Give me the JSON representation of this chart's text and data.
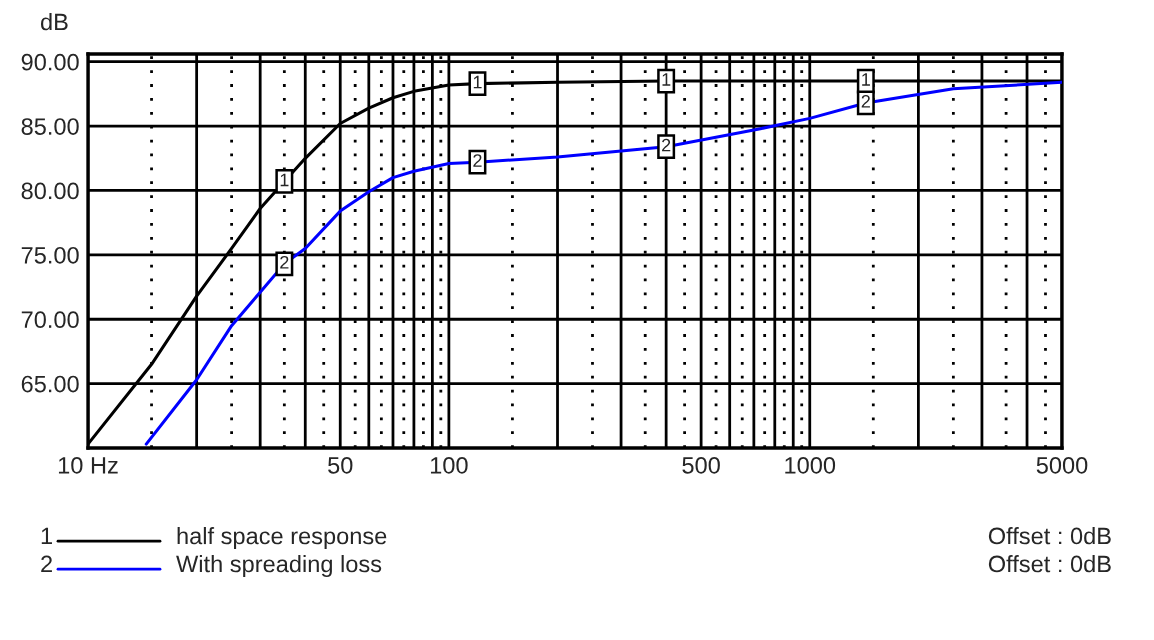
{
  "chart_data": {
    "type": "line",
    "ylabel": "dB",
    "log": "x",
    "grid": true,
    "legend": "bottom",
    "line_style": "solid",
    "marker": "none",
    "xlim": [
      10,
      5000
    ],
    "xticks": [
      {
        "value": 10,
        "label": "10 Hz"
      },
      50,
      100,
      500,
      1000,
      5000
    ],
    "ylim": [
      60,
      90.6
    ],
    "yticks": [
      {
        "value": 65,
        "label": "65.00"
      },
      {
        "value": 70,
        "label": "70.00"
      },
      {
        "value": 75,
        "label": "75.00"
      },
      {
        "value": 80,
        "label": "80.00"
      },
      {
        "value": 85,
        "label": "85.00"
      },
      {
        "value": 90,
        "label": "90.00"
      }
    ],
    "series": [
      {
        "name": "half space response",
        "color": "#000000",
        "x": [
          10,
          15,
          20,
          25,
          30,
          35,
          40,
          50,
          60,
          70,
          80,
          100,
          120,
          200,
          400,
          1000,
          1430,
          5000
        ],
        "values": [
          60.3,
          66.5,
          71.8,
          75.5,
          78.6,
          80.7,
          82.5,
          85.2,
          86.4,
          87.2,
          87.7,
          88.2,
          88.3,
          88.4,
          88.5,
          88.5,
          88.5,
          88.5
        ]
      },
      {
        "name": "With spreading loss",
        "color": "#0000ff",
        "x": [
          14.5,
          20,
          25,
          30,
          35,
          40,
          50,
          60,
          70,
          80,
          100,
          120,
          200,
          400,
          730,
          1000,
          1430,
          2500,
          5000
        ],
        "values": [
          60.3,
          65.3,
          69.5,
          72.1,
          74.3,
          75.5,
          78.4,
          79.9,
          81.0,
          81.5,
          82.1,
          82.2,
          82.6,
          83.4,
          84.8,
          85.6,
          86.8,
          87.9,
          88.4
        ]
      }
    ],
    "annotations": [
      {
        "text": "1",
        "x": 35,
        "y": 80.7
      },
      {
        "text": "1",
        "x": 120,
        "y": 88.3
      },
      {
        "text": "1",
        "x": 400,
        "y": 88.5
      },
      {
        "text": "1",
        "x": 1430,
        "y": 88.5
      },
      {
        "text": "2",
        "x": 35,
        "y": 74.3
      },
      {
        "text": "2",
        "x": 120,
        "y": 82.2
      },
      {
        "text": "2",
        "x": 400,
        "y": 83.4
      },
      {
        "text": "2",
        "x": 1430,
        "y": 86.8
      },
      "1",
      "2",
      "Offset : 0dB",
      "Offset : 0dB"
    ]
  }
}
